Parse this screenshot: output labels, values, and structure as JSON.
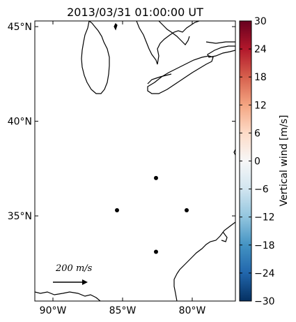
{
  "title": "2013/03/31 01:00:00 UT",
  "lon_ticks": [
    "90°W",
    "85°W",
    "80°W"
  ],
  "lon_values": [
    -90,
    -85,
    -80
  ],
  "lat_ticks": [
    "45°N",
    "40°N",
    "35°N"
  ],
  "lat_values": [
    45,
    40,
    35
  ],
  "extent": {
    "lon": [
      -91.3,
      -76.9
    ],
    "lat": [
      30.5,
      45.3
    ]
  },
  "colorbar": {
    "label": "Vertical wind [m/s]",
    "ticks": [
      "30",
      "24",
      "18",
      "12",
      "6",
      "0",
      "−6",
      "−12",
      "−18",
      "−24",
      "−30"
    ],
    "tick_values": [
      30,
      24,
      18,
      12,
      6,
      0,
      -6,
      -12,
      -18,
      -24,
      -30
    ],
    "range": [
      -30,
      30
    ],
    "colormap": "RdBu_r",
    "colors": [
      "#053061",
      "#2166ac",
      "#4393c3",
      "#92c5de",
      "#d1e5f0",
      "#f7f7f7",
      "#fddbc7",
      "#f4a582",
      "#d6604d",
      "#b2182b",
      "#67001f"
    ]
  },
  "reference_arrow": {
    "label": "200 m/s",
    "magnitude": 200,
    "unit": "m/s"
  },
  "stations": [
    {
      "lon": -82.6,
      "lat": 37.0
    },
    {
      "lon": -85.4,
      "lat": 35.3
    },
    {
      "lon": -80.4,
      "lat": 35.3
    },
    {
      "lon": -82.6,
      "lat": 33.1
    }
  ],
  "colors": {
    "frame": "#000000",
    "coast": "#000000",
    "station": "#000000",
    "background": "#ffffff"
  }
}
